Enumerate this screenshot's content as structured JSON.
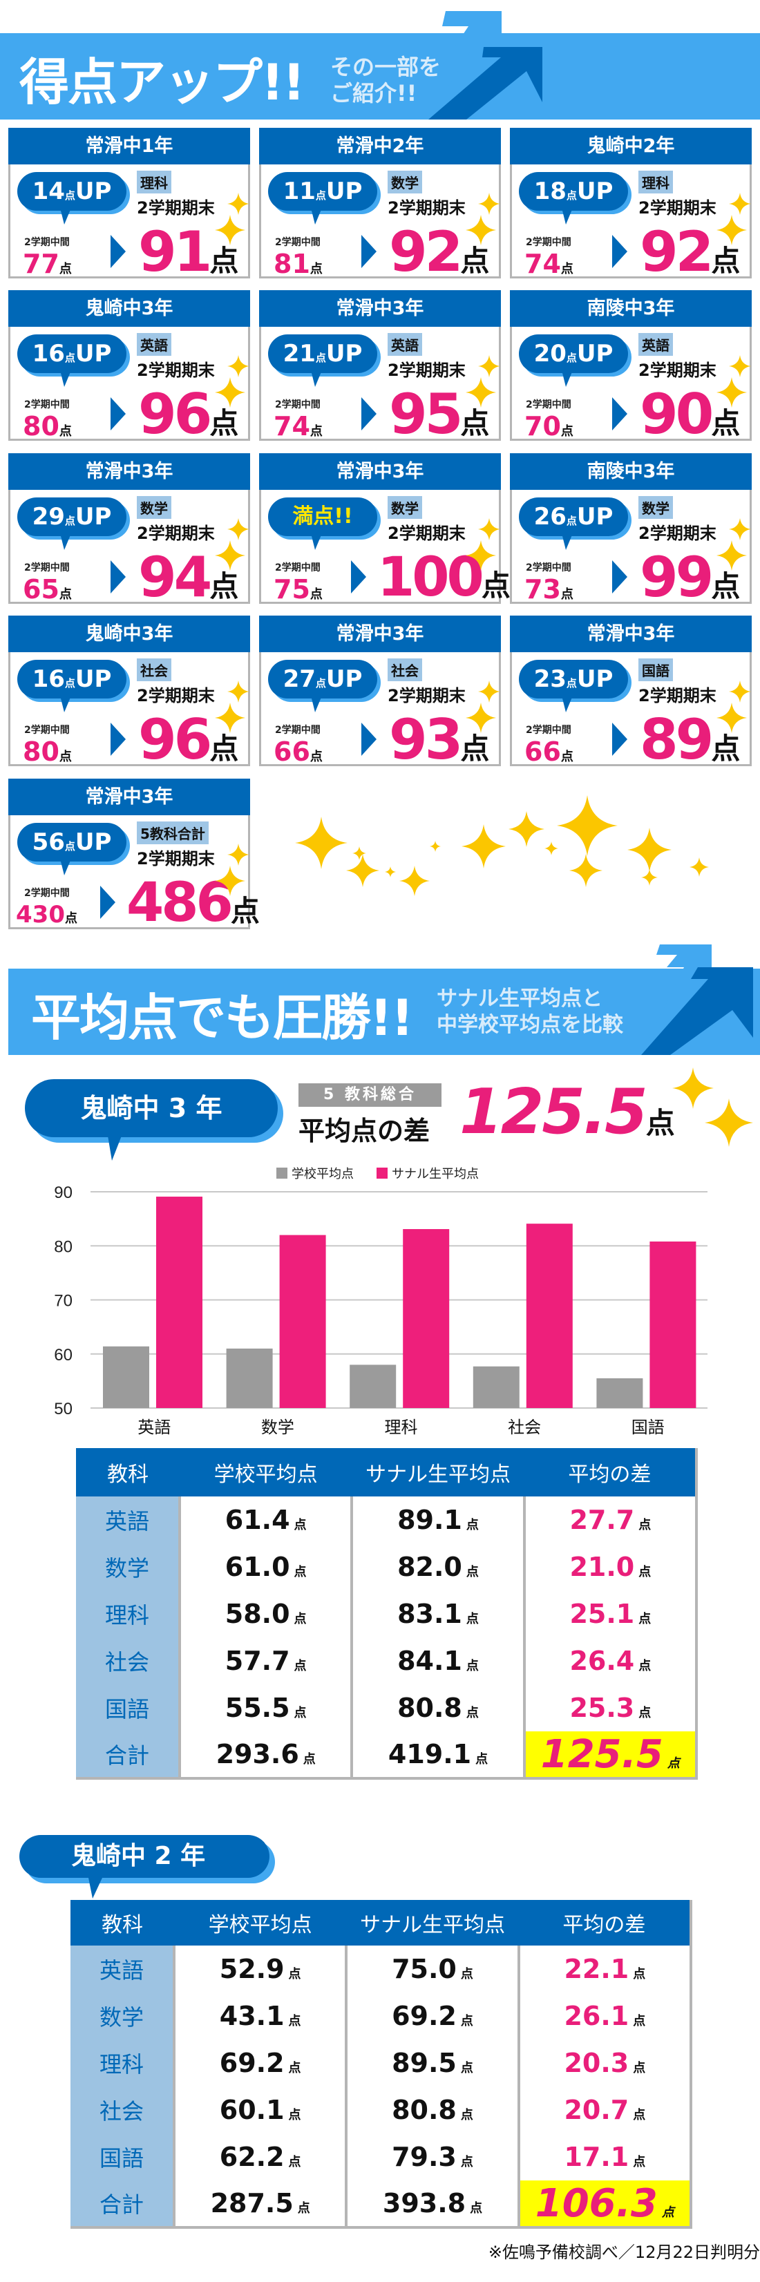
{
  "section1": {
    "title": "得点アップ!!",
    "subtitle_lines": [
      "その一部を",
      "ご紹介!!"
    ]
  },
  "cards": [
    {
      "school": "常滑中1年",
      "up": "14",
      "up_unit": "点",
      "up_suffix": "UP",
      "subject": "理科",
      "term": "2学期期末",
      "mid_label": "2学期中間",
      "before": "77",
      "after": "91",
      "unit": "点"
    },
    {
      "school": "常滑中2年",
      "up": "11",
      "up_unit": "点",
      "up_suffix": "UP",
      "subject": "数学",
      "term": "2学期期末",
      "mid_label": "2学期中間",
      "before": "81",
      "after": "92",
      "unit": "点"
    },
    {
      "school": "鬼崎中2年",
      "up": "18",
      "up_unit": "点",
      "up_suffix": "UP",
      "subject": "理科",
      "term": "2学期期末",
      "mid_label": "2学期中間",
      "before": "74",
      "after": "92",
      "unit": "点"
    },
    {
      "school": "鬼崎中3年",
      "up": "16",
      "up_unit": "点",
      "up_suffix": "UP",
      "subject": "英語",
      "term": "2学期期末",
      "mid_label": "2学期中間",
      "before": "80",
      "after": "96",
      "unit": "点"
    },
    {
      "school": "常滑中3年",
      "up": "21",
      "up_unit": "点",
      "up_suffix": "UP",
      "subject": "英語",
      "term": "2学期期末",
      "mid_label": "2学期中間",
      "before": "74",
      "after": "95",
      "unit": "点"
    },
    {
      "school": "南陵中3年",
      "up": "20",
      "up_unit": "点",
      "up_suffix": "UP",
      "subject": "英語",
      "term": "2学期期末",
      "mid_label": "2学期中間",
      "before": "70",
      "after": "90",
      "unit": "点"
    },
    {
      "school": "常滑中3年",
      "up": "29",
      "up_unit": "点",
      "up_suffix": "UP",
      "subject": "数学",
      "term": "2学期期末",
      "mid_label": "2学期中間",
      "before": "65",
      "after": "94",
      "unit": "点"
    },
    {
      "school": "常滑中3年",
      "badge": "満点!!",
      "subject": "数学",
      "term": "2学期期末",
      "mid_label": "2学期中間",
      "before": "75",
      "after": "100",
      "unit": "点"
    },
    {
      "school": "南陵中3年",
      "up": "26",
      "up_unit": "点",
      "up_suffix": "UP",
      "subject": "数学",
      "term": "2学期期末",
      "mid_label": "2学期中間",
      "before": "73",
      "after": "99",
      "unit": "点"
    },
    {
      "school": "鬼崎中3年",
      "up": "16",
      "up_unit": "点",
      "up_suffix": "UP",
      "subject": "社会",
      "term": "2学期期末",
      "mid_label": "2学期中間",
      "before": "80",
      "after": "96",
      "unit": "点"
    },
    {
      "school": "常滑中3年",
      "up": "27",
      "up_unit": "点",
      "up_suffix": "UP",
      "subject": "社会",
      "term": "2学期期末",
      "mid_label": "2学期中間",
      "before": "66",
      "after": "93",
      "unit": "点"
    },
    {
      "school": "常滑中3年",
      "up": "23",
      "up_unit": "点",
      "up_suffix": "UP",
      "subject": "国語",
      "term": "2学期期末",
      "mid_label": "2学期中間",
      "before": "66",
      "after": "89",
      "unit": "点"
    },
    {
      "school": "常滑中3年",
      "up": "56",
      "up_unit": "点",
      "up_suffix": "UP",
      "subject": "5教科合計",
      "term": "2学期期末",
      "mid_label": "2学期中間",
      "before": "430",
      "after": "486",
      "unit": "点"
    }
  ],
  "section2": {
    "title": "平均点でも圧勝!!",
    "subtitle_lines": [
      "サナル生平均点と",
      "中学校平均点を比較"
    ]
  },
  "oni3": {
    "label": "鬼崎中 3 年",
    "total_tag": "5 教科総合",
    "diff_label": "平均点の差",
    "diff_value": "125.5",
    "unit": "点"
  },
  "chart_data": {
    "type": "bar",
    "categories": [
      "英語",
      "数学",
      "理科",
      "社会",
      "国語"
    ],
    "series": [
      {
        "name": "学校平均点",
        "values": [
          61.4,
          61.0,
          58.0,
          57.7,
          55.5
        ],
        "color": "#9b9b9b"
      },
      {
        "name": "サナル生平均点",
        "values": [
          89.1,
          82.0,
          83.1,
          84.1,
          80.8
        ],
        "color": "#ee1f7b"
      }
    ],
    "ylim": [
      50,
      90
    ],
    "yticks": [
      "90",
      "80",
      "70",
      "60",
      "50"
    ],
    "grid": true,
    "legend": "top-center"
  },
  "tables": [
    {
      "headers": [
        "教科",
        "学校平均点",
        "サナル生平均点",
        "平均の差"
      ],
      "unit": "点",
      "rows": [
        [
          "英語",
          "61.4",
          "89.1",
          "27.7"
        ],
        [
          "数学",
          "61.0",
          "82.0",
          "21.0"
        ],
        [
          "理科",
          "58.0",
          "83.1",
          "25.1"
        ],
        [
          "社会",
          "57.7",
          "84.1",
          "26.4"
        ],
        [
          "国語",
          "55.5",
          "80.8",
          "25.3"
        ],
        [
          "合計",
          "293.6",
          "419.1",
          "125.5"
        ]
      ]
    },
    {
      "headers": [
        "教科",
        "学校平均点",
        "サナル生平均点",
        "平均の差"
      ],
      "unit": "点",
      "rows": [
        [
          "英語",
          "52.9",
          "75.0",
          "22.1"
        ],
        [
          "数学",
          "43.1",
          "69.2",
          "26.1"
        ],
        [
          "理科",
          "69.2",
          "89.5",
          "20.3"
        ],
        [
          "社会",
          "60.1",
          "80.8",
          "20.7"
        ],
        [
          "国語",
          "62.2",
          "79.3",
          "17.1"
        ],
        [
          "合計",
          "287.5",
          "393.8",
          "106.3"
        ]
      ]
    }
  ],
  "oni2": {
    "label": "鬼崎中 2 年"
  },
  "footnote": "※佐鳴予備校調べ／12月22日判明分",
  "colors": {
    "dark_blue": "#0068b7",
    "light_blue": "#42a8f0",
    "pink": "#e91e7a",
    "sparkle": "#fbc600",
    "highlight": "#ffff00"
  }
}
